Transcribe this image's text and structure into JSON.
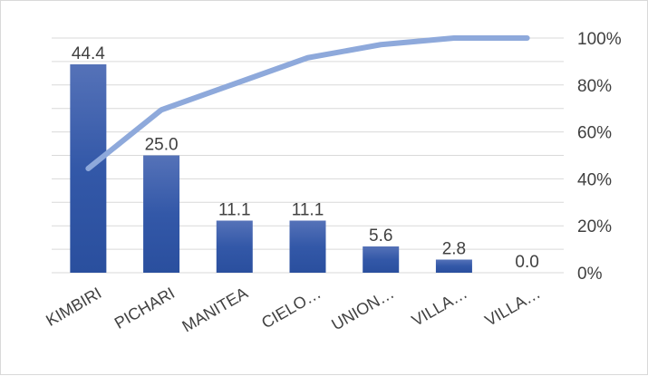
{
  "chart_data": {
    "type": "bar",
    "title": "",
    "xlabel": "",
    "ylabel": "",
    "categories": [
      "KIMBIRI",
      "PICHARI",
      "MANITEA",
      "CIELO…",
      "UNION…",
      "VILLA…",
      "VILLA…"
    ],
    "series": [
      {
        "type": "bar",
        "values": [
          44.4,
          25.0,
          11.1,
          11.1,
          5.6,
          2.8,
          0.0
        ],
        "data_labels": [
          "44.4",
          "25.0",
          "11.1",
          "11.1",
          "5.6",
          "2.8",
          "0.0"
        ],
        "color": "#2f55a4"
      },
      {
        "type": "line",
        "axis": "secondary",
        "values": [
          44.4,
          69.4,
          80.5,
          91.6,
          97.2,
          100.0,
          100.0
        ],
        "color": "#8ea9db"
      }
    ],
    "ylim": [
      0,
      50
    ],
    "y2lim": [
      0,
      100
    ],
    "y2_ticks": [
      "0%",
      "20%",
      "40%",
      "60%",
      "80%",
      "100%"
    ],
    "grid": true,
    "legend": "none"
  }
}
